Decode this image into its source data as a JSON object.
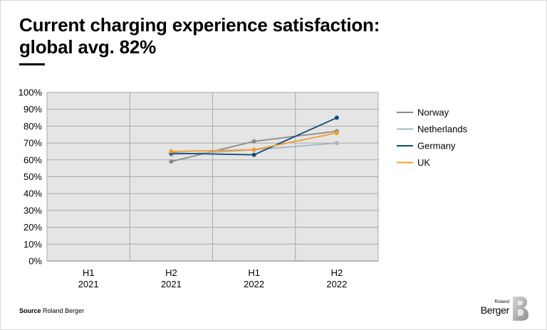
{
  "chart_data": {
    "type": "line",
    "title_line1": "Current charging experience satisfaction:",
    "title_line2": "global avg. 82%",
    "categories": [
      {
        "line1": "H1",
        "line2": "2021"
      },
      {
        "line1": "H2",
        "line2": "2021"
      },
      {
        "line1": "H1",
        "line2": "2022"
      },
      {
        "line1": "H2",
        "line2": "2022"
      }
    ],
    "ylim": [
      0,
      100
    ],
    "y_ticks": [
      0,
      10,
      20,
      30,
      40,
      50,
      60,
      70,
      80,
      90,
      100
    ],
    "y_tick_labels": [
      "0%",
      "10%",
      "20%",
      "30%",
      "40%",
      "50%",
      "60%",
      "70%",
      "80%",
      "90%",
      "100%"
    ],
    "grid": true,
    "legend_position": "right",
    "series": [
      {
        "name": "Norway",
        "color": "#8a8a8a",
        "values": [
          null,
          59,
          71,
          77
        ]
      },
      {
        "name": "Netherlands",
        "color": "#a6b5c4",
        "values": [
          null,
          63,
          66,
          70
        ]
      },
      {
        "name": "Germany",
        "color": "#0f4c7a",
        "values": [
          null,
          64,
          63,
          85
        ]
      },
      {
        "name": "UK",
        "color": "#f39c2b",
        "values": [
          null,
          65,
          66,
          76
        ]
      }
    ],
    "plot_background": "#e5e5e5",
    "grid_color": "#a9a9a9"
  },
  "footer": {
    "source_label": "Source",
    "source_text": "Roland Berger"
  },
  "logo": {
    "small_text": "Roland",
    "big_text": "Berger"
  }
}
